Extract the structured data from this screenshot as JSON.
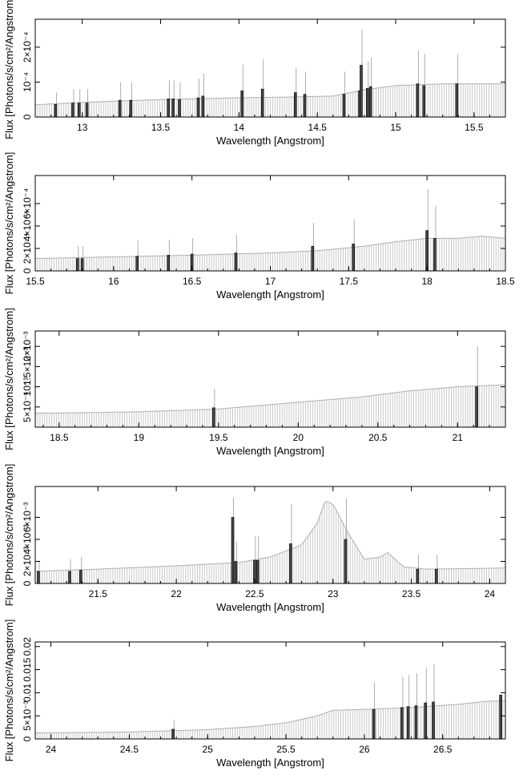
{
  "chart_data": [
    {
      "type": "line",
      "xlabel": "Wavelength [Angstrom]",
      "ylabel": "Flux [Photons/s/cm²/Angstrom]",
      "xlim": [
        12.7,
        15.7
      ],
      "ylim": [
        0,
        0.00028
      ],
      "xticks": [
        "13",
        "13.5",
        "14",
        "14.5",
        "15",
        "15.5"
      ],
      "xtick_values": [
        13,
        13.5,
        14,
        14.5,
        15,
        15.5
      ],
      "yticks": [
        "0",
        "10⁻⁴",
        "2×10⁻⁴"
      ],
      "ytick_values": [
        0,
        0.0001,
        0.0002
      ],
      "continuum": {
        "x": [
          12.7,
          13.0,
          13.5,
          14.0,
          14.3,
          14.6,
          14.8,
          15.0,
          15.3,
          15.7
        ],
        "y": [
          3.5e-05,
          4.2e-05,
          5e-05,
          5.5e-05,
          5.7e-05,
          6e-05,
          7.8e-05,
          9e-05,
          9.5e-05,
          9.5e-05
        ]
      },
      "lines": [
        {
          "x": 12.83,
          "y": 3.6e-05,
          "err": 7e-05
        },
        {
          "x": 12.94,
          "y": 4e-05,
          "err": 8e-05
        },
        {
          "x": 12.98,
          "y": 4e-05,
          "err": 8e-05
        },
        {
          "x": 13.03,
          "y": 4e-05,
          "err": 8e-05
        },
        {
          "x": 13.24,
          "y": 4.8e-05,
          "err": 0.0001
        },
        {
          "x": 13.31,
          "y": 4.8e-05,
          "err": 0.0001
        },
        {
          "x": 13.55,
          "y": 5.2e-05,
          "err": 0.000105
        },
        {
          "x": 13.58,
          "y": 5.2e-05,
          "err": 0.000105
        },
        {
          "x": 13.62,
          "y": 5e-05,
          "err": 0.0001
        },
        {
          "x": 13.74,
          "y": 5.5e-05,
          "err": 0.00011
        },
        {
          "x": 13.77,
          "y": 6e-05,
          "err": 0.000125
        },
        {
          "x": 14.02,
          "y": 7.5e-05,
          "err": 0.00015
        },
        {
          "x": 14.15,
          "y": 8e-05,
          "err": 0.000165
        },
        {
          "x": 14.36,
          "y": 7e-05,
          "err": 0.00014
        },
        {
          "x": 14.42,
          "y": 6.5e-05,
          "err": 0.00013
        },
        {
          "x": 14.67,
          "y": 6.5e-05,
          "err": 0.00013
        },
        {
          "x": 14.77,
          "y": 7.5e-05,
          "err": 0.00015
        },
        {
          "x": 14.78,
          "y": 0.000148,
          "err": 0.00025
        },
        {
          "x": 14.82,
          "y": 8.2e-05,
          "err": 0.00016
        },
        {
          "x": 14.84,
          "y": 8.7e-05,
          "err": 0.00017
        },
        {
          "x": 15.14,
          "y": 9.5e-05,
          "err": 0.00019
        },
        {
          "x": 15.18,
          "y": 9e-05,
          "err": 0.00018
        },
        {
          "x": 15.39,
          "y": 9.5e-05,
          "err": 0.00018
        }
      ]
    },
    {
      "type": "line",
      "xlabel": "Wavelength [Angstrom]",
      "ylabel": "Flux [Photons/s/cm²/Angstrom]",
      "xlim": [
        15.5,
        18.5
      ],
      "ylim": [
        0,
        0.00085
      ],
      "xticks": [
        "15.5",
        "16",
        "16.5",
        "17",
        "17.5",
        "18",
        "18.5"
      ],
      "xtick_values": [
        15.5,
        16,
        16.5,
        17,
        17.5,
        18,
        18.5
      ],
      "yticks": [
        "0",
        "2×10⁻⁴",
        "4×10⁻⁴",
        "6×10⁻⁴"
      ],
      "ytick_values": [
        0,
        0.0002,
        0.0004,
        0.0006
      ],
      "continuum": {
        "x": [
          15.5,
          16.0,
          16.5,
          17.0,
          17.3,
          17.6,
          17.8,
          18.0,
          18.2,
          18.35,
          18.5
        ],
        "y": [
          0.00011,
          0.000125,
          0.00014,
          0.00016,
          0.00018,
          0.00022,
          0.00026,
          0.00029,
          0.00029,
          0.00031,
          0.00029
        ]
      },
      "lines": [
        {
          "x": 15.77,
          "y": 0.00011,
          "err": 0.00022
        },
        {
          "x": 15.8,
          "y": 0.00011,
          "err": 0.00022
        },
        {
          "x": 16.15,
          "y": 0.00013,
          "err": 0.00027
        },
        {
          "x": 16.35,
          "y": 0.00014,
          "err": 0.00028
        },
        {
          "x": 16.5,
          "y": 0.00015,
          "err": 0.00029
        },
        {
          "x": 16.78,
          "y": 0.00016,
          "err": 0.00032
        },
        {
          "x": 17.27,
          "y": 0.00022,
          "err": 0.00043
        },
        {
          "x": 17.53,
          "y": 0.00024,
          "err": 0.00046
        },
        {
          "x": 18.0,
          "y": 0.00036,
          "err": 0.00073
        },
        {
          "x": 18.05,
          "y": 0.00029,
          "err": 0.00058
        }
      ]
    },
    {
      "type": "line",
      "xlabel": "Wavelength [Angstrom]",
      "ylabel": "Flux [Photons/s/cm²/Angstrom]",
      "xlim": [
        18.35,
        21.3
      ],
      "ylim": [
        0,
        0.00238
      ],
      "xticks": [
        "18.5",
        "19",
        "19.5",
        "20",
        "20.5",
        "21"
      ],
      "xtick_values": [
        18.5,
        19,
        19.5,
        20,
        20.5,
        21
      ],
      "yticks": [
        "5×10⁻⁴",
        "10⁻³",
        "1.5×10⁻³",
        "2×10⁻³"
      ],
      "ytick_values": [
        0.0005,
        0.001,
        0.0015,
        0.002
      ],
      "continuum": {
        "x": [
          18.35,
          18.5,
          19.0,
          19.5,
          19.8,
          20.1,
          20.4,
          20.7,
          21.0,
          21.3
        ],
        "y": [
          0.00035,
          0.00035,
          0.00038,
          0.00045,
          0.00055,
          0.00065,
          0.00075,
          0.0009,
          0.001,
          0.00105
        ]
      },
      "lines": [
        {
          "x": 19.47,
          "y": 0.00048,
          "err": 0.00095
        },
        {
          "x": 21.12,
          "y": 0.001,
          "err": 0.002
        }
      ]
    },
    {
      "type": "line",
      "xlabel": "Wavelength [Angstrom]",
      "ylabel": "Flux [Photons/s/cm²/Angstrom]",
      "xlim": [
        21.1,
        24.1
      ],
      "ylim": [
        0,
        0.0088
      ],
      "xticks": [
        "21.5",
        "22",
        "22.5",
        "23",
        "23.5",
        "24"
      ],
      "xtick_values": [
        21.5,
        22,
        22.5,
        23,
        23.5,
        24
      ],
      "yticks": [
        "0",
        "2×10⁻³",
        "4×10⁻³",
        "6×10⁻³"
      ],
      "ytick_values": [
        0,
        0.002,
        0.004,
        0.006
      ],
      "continuum": {
        "x": [
          21.1,
          21.5,
          22.0,
          22.4,
          22.6,
          22.8,
          22.9,
          22.95,
          23.0,
          23.1,
          23.2,
          23.3,
          23.35,
          23.45,
          23.6,
          24.1
        ],
        "y": [
          0.0011,
          0.0013,
          0.0016,
          0.0019,
          0.0024,
          0.0035,
          0.0055,
          0.0075,
          0.0072,
          0.0045,
          0.0022,
          0.0024,
          0.0028,
          0.0015,
          0.0013,
          0.0014
        ]
      },
      "lines": [
        {
          "x": 21.12,
          "y": 0.0011,
          "err": 0.0021
        },
        {
          "x": 21.32,
          "y": 0.0011,
          "err": 0.0022
        },
        {
          "x": 21.39,
          "y": 0.0012,
          "err": 0.0024
        },
        {
          "x": 22.36,
          "y": 0.006,
          "err": 0.0078
        },
        {
          "x": 22.38,
          "y": 0.002,
          "err": 0.0038
        },
        {
          "x": 22.5,
          "y": 0.0021,
          "err": 0.0043
        },
        {
          "x": 22.52,
          "y": 0.0021,
          "err": 0.0043
        },
        {
          "x": 22.73,
          "y": 0.0036,
          "err": 0.0072
        },
        {
          "x": 23.08,
          "y": 0.004,
          "err": 0.0077
        },
        {
          "x": 23.54,
          "y": 0.0013,
          "err": 0.0026
        },
        {
          "x": 23.66,
          "y": 0.0013,
          "err": 0.0026
        }
      ]
    },
    {
      "type": "line",
      "xlabel": "Wavelength [Angstrom]",
      "ylabel": "Flux [Photons/s/cm²/Angstrom]",
      "xlim": [
        23.9,
        26.9
      ],
      "ylim": [
        0,
        0.021
      ],
      "xticks": [
        "24",
        "24.5",
        "25",
        "25.5",
        "26",
        "26.5"
      ],
      "xtick_values": [
        24,
        24.5,
        25,
        25.5,
        26,
        26.5
      ],
      "yticks": [
        "0",
        "5×10⁻³",
        "0.01",
        "0.015",
        "0.02"
      ],
      "ytick_values": [
        0,
        0.005,
        0.01,
        0.015,
        0.02
      ],
      "continuum": {
        "x": [
          23.9,
          24.5,
          25.0,
          25.3,
          25.5,
          25.7,
          25.8,
          26.0,
          26.3,
          26.6,
          26.8,
          26.9
        ],
        "y": [
          0.0013,
          0.0015,
          0.002,
          0.0027,
          0.0035,
          0.005,
          0.0062,
          0.0064,
          0.0068,
          0.0075,
          0.0082,
          0.0082
        ]
      },
      "lines": [
        {
          "x": 24.78,
          "y": 0.0021,
          "err": 0.0042
        },
        {
          "x": 26.06,
          "y": 0.0064,
          "err": 0.0123
        },
        {
          "x": 26.24,
          "y": 0.0068,
          "err": 0.0134
        },
        {
          "x": 26.28,
          "y": 0.007,
          "err": 0.0138
        },
        {
          "x": 26.33,
          "y": 0.0072,
          "err": 0.0142
        },
        {
          "x": 26.39,
          "y": 0.0078,
          "err": 0.0155
        },
        {
          "x": 26.44,
          "y": 0.008,
          "err": 0.0162
        },
        {
          "x": 26.87,
          "y": 0.0095,
          "err": 0.0095
        }
      ]
    }
  ]
}
